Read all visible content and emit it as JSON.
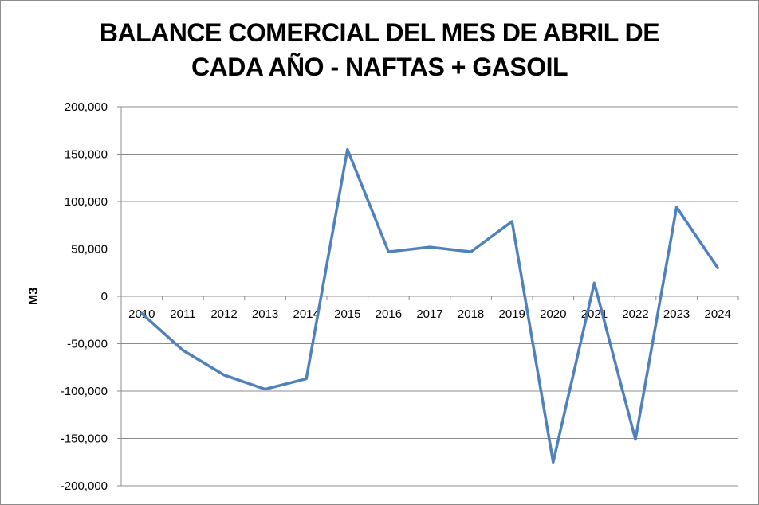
{
  "chart_data": {
    "type": "line",
    "title_line1": "BALANCE COMERCIAL DEL MES DE ABRIL DE",
    "title_line2": "CADA AÑO - NAFTAS + GASOIL",
    "ylabel": "M3",
    "xlabel": "",
    "categories": [
      "2010",
      "2011",
      "2012",
      "2013",
      "2014",
      "2015",
      "2016",
      "2017",
      "2018",
      "2019",
      "2020",
      "2021",
      "2022",
      "2023",
      "2024"
    ],
    "series": [
      {
        "name": "",
        "color": "#4f81bd",
        "values": [
          -18000,
          -57000,
          -83000,
          -98000,
          -87000,
          155000,
          47000,
          52000,
          47000,
          79000,
          -175000,
          14000,
          -151000,
          94000,
          30000
        ]
      }
    ],
    "ylim": [
      -200000,
      200000
    ],
    "yticks": [
      200000,
      150000,
      100000,
      50000,
      0,
      -50000,
      -100000,
      -150000,
      -200000
    ],
    "ytick_labels": [
      "200,000",
      "150,000",
      "100,000",
      "50,000",
      "0",
      "-50,000",
      "-100,000",
      "-150,000",
      "-200,000"
    ],
    "grid": true,
    "legend": "none"
  }
}
